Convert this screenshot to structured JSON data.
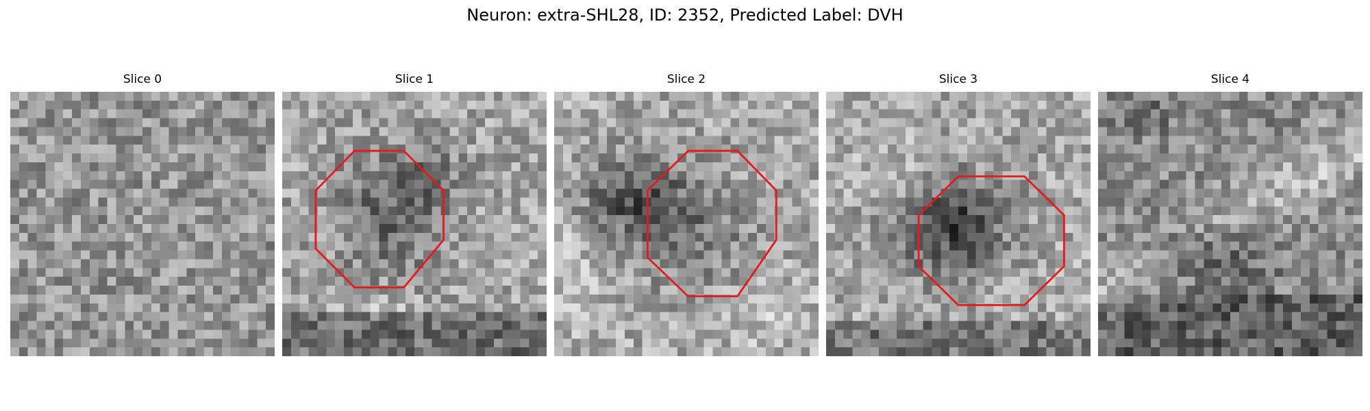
{
  "figure": {
    "title": "Neuron: extra-SHL28, ID: 2352, Predicted Label: DVH"
  },
  "colors": {
    "roi_outline": "#e41a1c",
    "background": "#ffffff"
  },
  "panels": [
    {
      "title": "Slice 0",
      "has_roi": false,
      "image": "noisy grayscale pixel patch, no distinct structure"
    },
    {
      "title": "Slice 1",
      "has_roi": true,
      "image": "grayscale pixel patch with darker blob inside octagonal ROI"
    },
    {
      "title": "Slice 2",
      "has_roi": true,
      "image": "grayscale pixel patch with dark blob, octagonal ROI"
    },
    {
      "title": "Slice 3",
      "has_roi": true,
      "image": "grayscale pixel patch with dark blob, octagonal ROI"
    },
    {
      "title": "Slice 4",
      "has_roi": false,
      "image": "grayscale pixel patch with bright diagonal band"
    }
  ]
}
